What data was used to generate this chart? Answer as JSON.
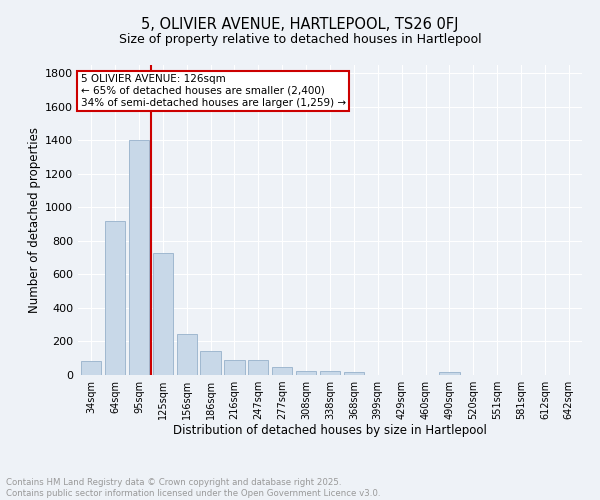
{
  "title1": "5, OLIVIER AVENUE, HARTLEPOOL, TS26 0FJ",
  "title2": "Size of property relative to detached houses in Hartlepool",
  "xlabel": "Distribution of detached houses by size in Hartlepool",
  "ylabel": "Number of detached properties",
  "categories": [
    "34sqm",
    "64sqm",
    "95sqm",
    "125sqm",
    "156sqm",
    "186sqm",
    "216sqm",
    "247sqm",
    "277sqm",
    "308sqm",
    "338sqm",
    "368sqm",
    "399sqm",
    "429sqm",
    "460sqm",
    "490sqm",
    "520sqm",
    "551sqm",
    "581sqm",
    "612sqm",
    "642sqm"
  ],
  "values": [
    85,
    920,
    1400,
    730,
    245,
    145,
    90,
    90,
    50,
    25,
    25,
    15,
    0,
    0,
    0,
    15,
    0,
    0,
    0,
    0,
    0
  ],
  "bar_color": "#c8d8e8",
  "bar_edge_color": "#a0b8d0",
  "background_color": "#eef2f7",
  "grid_color": "#ffffff",
  "vline_color": "#cc0000",
  "vline_x_index": 2.5,
  "ylim": [
    0,
    1850
  ],
  "yticks": [
    0,
    200,
    400,
    600,
    800,
    1000,
    1200,
    1400,
    1600,
    1800
  ],
  "annotation_line1": "5 OLIVIER AVENUE: 126sqm",
  "annotation_line2": "← 65% of detached houses are smaller (2,400)",
  "annotation_line3": "34% of semi-detached houses are larger (1,259) →",
  "annotation_box_color": "#ffffff",
  "annotation_box_edge_color": "#cc0000",
  "footer_line1": "Contains HM Land Registry data © Crown copyright and database right 2025.",
  "footer_line2": "Contains public sector information licensed under the Open Government Licence v3.0.",
  "footer_color": "#999999"
}
